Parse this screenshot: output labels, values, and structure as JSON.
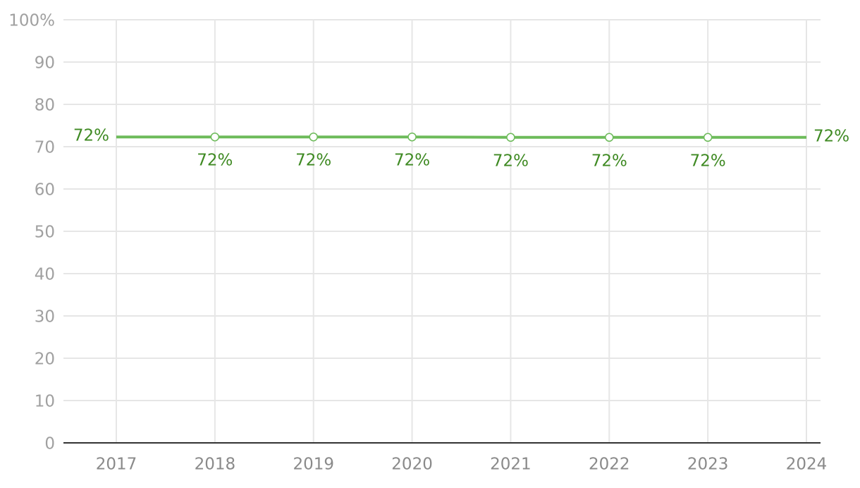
{
  "chart_data": {
    "type": "line",
    "categories": [
      "2017",
      "2018",
      "2019",
      "2020",
      "2021",
      "2022",
      "2023",
      "2024"
    ],
    "series": [
      {
        "color": "#6dbb5a",
        "values": [
          72.3,
          72.3,
          72.3,
          72.3,
          72.2,
          72.2,
          72.2,
          72.2
        ],
        "value_labels": [
          "72%",
          "72%",
          "72%",
          "72%",
          "72%",
          "72%",
          "72%",
          "72%"
        ]
      }
    ],
    "ylim": [
      0,
      100
    ],
    "yticks": [
      0,
      10,
      20,
      30,
      40,
      50,
      60,
      70,
      80,
      90,
      {
        "value": 100,
        "label": "100%"
      }
    ],
    "grid": true
  }
}
